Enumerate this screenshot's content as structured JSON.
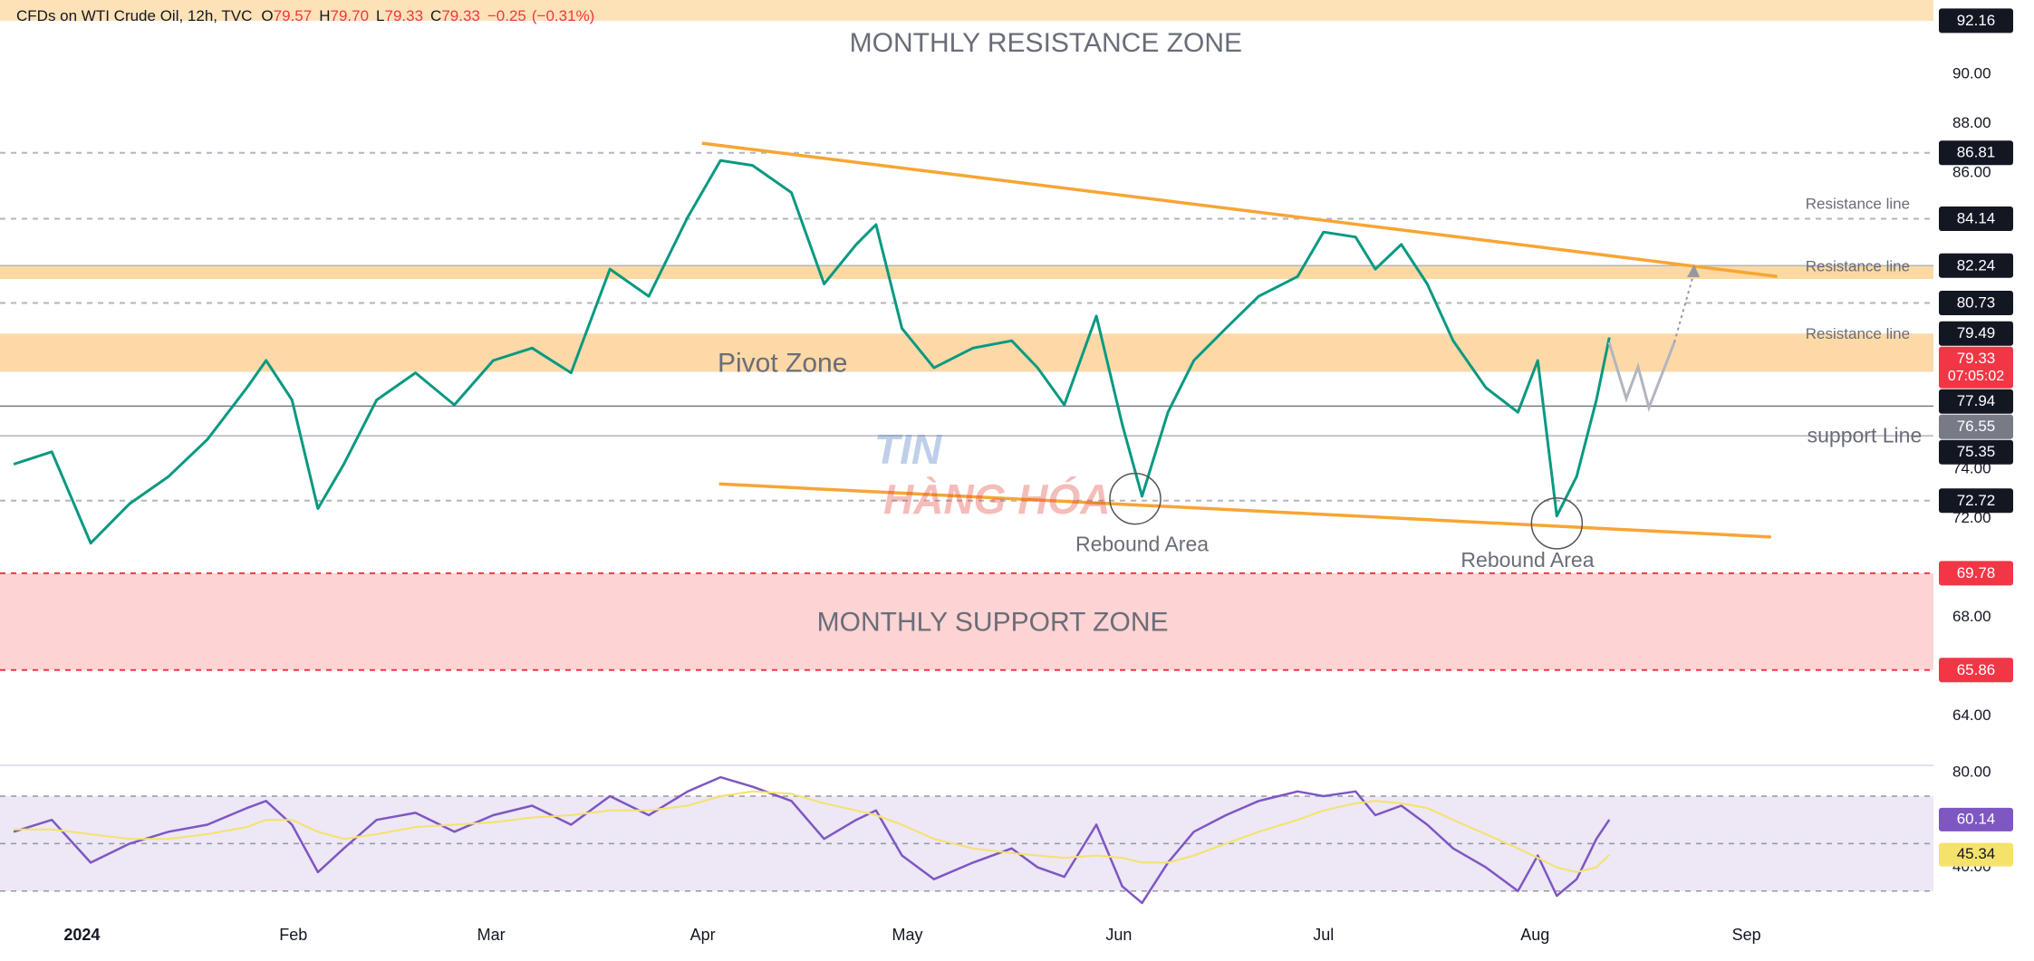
{
  "chart_data": [
    {
      "type": "line",
      "title": "CFDs on WTI Crude Oil, 12h, TVC",
      "ohlc": [
        {
          "prefix": "O",
          "value": 79.57
        },
        {
          "prefix": "H",
          "value": 79.7,
          "label": "79.70"
        },
        {
          "prefix": "L",
          "value": 79.33
        },
        {
          "prefix": "C",
          "value": 79.33
        }
      ],
      "change": {
        "value": -0.25,
        "label": "−0.25"
      },
      "change_pct": {
        "value": -0.31,
        "label": "(−0.31%)"
      },
      "color": "#089981",
      "x": [
        -10,
        -4.4,
        1.3,
        7,
        12.7,
        18.4,
        24.2,
        27,
        30.8,
        34.6,
        38.4,
        43.2,
        48.9,
        54.6,
        60.3,
        66,
        71.7,
        77.4,
        83.1,
        88.8,
        93.6,
        98.3,
        104,
        108.8,
        113.5,
        116.4,
        120.2,
        124.9,
        130.6,
        136.3,
        140.1,
        144,
        148.7,
        152.5,
        155.4,
        159.2,
        163,
        167.7,
        172.5,
        178.2,
        182,
        186.7,
        189.6,
        193.4,
        197.2,
        201,
        205.8,
        210.5,
        213.4,
        216.2,
        219.1,
        222,
        223.9
      ],
      "values": [
        74.2,
        74.7,
        71.0,
        72.6,
        73.7,
        75.2,
        77.3,
        78.4,
        76.8,
        72.4,
        74.2,
        76.8,
        77.9,
        76.6,
        78.4,
        78.9,
        77.9,
        82.1,
        81.0,
        84.2,
        86.5,
        86.3,
        85.2,
        81.5,
        83.1,
        83.9,
        79.7,
        78.1,
        78.9,
        79.2,
        78.1,
        76.6,
        80.2,
        75.8,
        72.9,
        76.3,
        78.4,
        79.7,
        81.0,
        81.8,
        83.6,
        83.4,
        82.1,
        83.1,
        81.5,
        79.2,
        77.3,
        76.3,
        78.4,
        72.1,
        73.7,
        76.8,
        79.33
      ],
      "xlim": [
        -12,
        271.4
      ],
      "xticks": [
        {
          "value": 0,
          "label": "2024"
        },
        {
          "value": 31,
          "label": "Feb"
        },
        {
          "value": 60,
          "label": "Mar"
        },
        {
          "value": 91,
          "label": "Apr"
        },
        {
          "value": 121,
          "label": "May"
        },
        {
          "value": 152,
          "label": "Jun"
        },
        {
          "value": 182,
          "label": "Jul"
        },
        {
          "value": 213,
          "label": "Aug"
        },
        {
          "value": 244,
          "label": "Sep"
        }
      ],
      "ylim": [
        62,
        93
      ],
      "yticks": [
        {
          "value": 64,
          "label": "64.00"
        },
        {
          "value": 68,
          "label": "68.00"
        },
        {
          "value": 72,
          "label": "72.00"
        },
        {
          "value": 74,
          "label": "74.00"
        },
        {
          "value": 86,
          "label": "86.00"
        },
        {
          "value": 88,
          "label": "88.00"
        },
        {
          "value": 90,
          "label": "90.00"
        }
      ],
      "zones": [
        {
          "from": 92.16,
          "color": "#fde2b8"
        },
        {
          "from": 81.7,
          "to": 82.24,
          "color": "#fcd9a3"
        },
        {
          "from": 77.94,
          "to": 79.49,
          "color": "#fdd9a8"
        },
        {
          "from": 65.86,
          "to": 69.78,
          "color": "#fdd3d3"
        }
      ],
      "levels": [
        {
          "value": 92.16
        },
        {
          "value": 86.81,
          "line": "dashed"
        },
        {
          "value": 84.14,
          "line": "dashed"
        },
        {
          "value": 82.24,
          "line": "solid"
        },
        {
          "value": 80.73,
          "line": "dashed"
        },
        {
          "value": 79.49
        },
        {
          "value": 79.33,
          "sub": "07:05:02",
          "color": "#f23645"
        },
        {
          "value": 77.94
        },
        {
          "value": 76.55,
          "line": "solid",
          "color": "#787b86"
        },
        {
          "value": 75.35,
          "line": "solid"
        },
        {
          "value": 72.72,
          "line": "dashed"
        },
        {
          "value": 69.78,
          "line": "dashed",
          "color": "#f23645"
        },
        {
          "value": 65.86,
          "line": "dashed",
          "color": "#f23645"
        }
      ],
      "trendlines": [
        {
          "x": [
            90.9,
            248.5
          ],
          "y": [
            87.2,
            81.8
          ],
          "color": "#f7a534"
        },
        {
          "x": [
            93.4,
            247.6
          ],
          "y": [
            73.4,
            71.25
          ],
          "color": "#f7a534"
        }
      ],
      "annotations": [
        {
          "text": "MONTHLY RESISTANCE ZONE",
          "x": 141.3,
          "y": 91.2,
          "size": "big"
        },
        {
          "text": "Pivot Zone",
          "x": 102.7,
          "y": 78.24,
          "size": "big"
        },
        {
          "text": "MONTHLY SUPPORT ZONE",
          "x": 133.5,
          "y": 67.73,
          "size": "big"
        },
        {
          "text": "Rebound Area",
          "x": 155.4,
          "y": 70.9,
          "size": "mid"
        },
        {
          "text": "Rebound Area",
          "x": 211.9,
          "y": 70.25,
          "size": "mid"
        },
        {
          "text": "Resistance line",
          "x": 260.3,
          "y": 84.7,
          "size": "small"
        },
        {
          "text": "Resistance line",
          "x": 260.3,
          "y": 82.17,
          "size": "small"
        },
        {
          "text": "Resistance line",
          "x": 260.3,
          "y": 79.44,
          "size": "small"
        },
        {
          "text": "support Line",
          "x": 261.3,
          "y": 75.3,
          "size": "mid"
        }
      ],
      "circles": [
        {
          "x": 154.4,
          "y": 72.8
        },
        {
          "x": 216.2,
          "y": 71.8
        }
      ],
      "watermark": [
        "TIN",
        "HÀNG HÓA"
      ]
    },
    {
      "type": "line",
      "x": [
        -10,
        -4.4,
        1.3,
        7,
        12.7,
        18.4,
        24.2,
        27,
        30.8,
        34.6,
        38.4,
        43.2,
        48.9,
        54.6,
        60.3,
        66,
        71.7,
        77.4,
        83.1,
        88.8,
        93.6,
        98.3,
        104,
        108.8,
        113.5,
        116.4,
        120.2,
        124.9,
        130.6,
        136.3,
        140.1,
        144,
        148.7,
        152.5,
        155.4,
        159.2,
        163,
        167.7,
        172.5,
        178.2,
        182,
        186.7,
        189.6,
        193.4,
        197.2,
        201,
        205.8,
        210.5,
        213.4,
        216.2,
        219.1,
        222,
        223.9
      ],
      "series": [
        {
          "color": "#7e57c2",
          "values": [
            55,
            60,
            42,
            50,
            55,
            58,
            65,
            68,
            58,
            38,
            48,
            60,
            63,
            55,
            62,
            66,
            58,
            70,
            62,
            72,
            78,
            74,
            68,
            52,
            60,
            64,
            45,
            35,
            42,
            48,
            40,
            36,
            58,
            32,
            25,
            42,
            55,
            62,
            68,
            72,
            70,
            72,
            62,
            66,
            58,
            48,
            40,
            30,
            45,
            28,
            35,
            52,
            60.14
          ]
        },
        {
          "color": "#f5e26b",
          "values": [
            56,
            56,
            54,
            52,
            52,
            54,
            57,
            60,
            60,
            55,
            52,
            54,
            57,
            58,
            59,
            61,
            62,
            64,
            64,
            66,
            70,
            72,
            71,
            67,
            64,
            62,
            58,
            52,
            48,
            46,
            45,
            44,
            45,
            44,
            42,
            42,
            45,
            50,
            55,
            60,
            64,
            67,
            68,
            67,
            65,
            60,
            54,
            48,
            44,
            40,
            38,
            40,
            45.34
          ]
        }
      ],
      "xlim": [
        -12,
        271.4
      ],
      "ylim": [
        20,
        83
      ],
      "yticks": [
        {
          "value": 80,
          "label": "80.00"
        },
        {
          "value": 40,
          "label": "40.00"
        }
      ],
      "band": [
        30,
        70
      ],
      "midline": 50
    }
  ]
}
